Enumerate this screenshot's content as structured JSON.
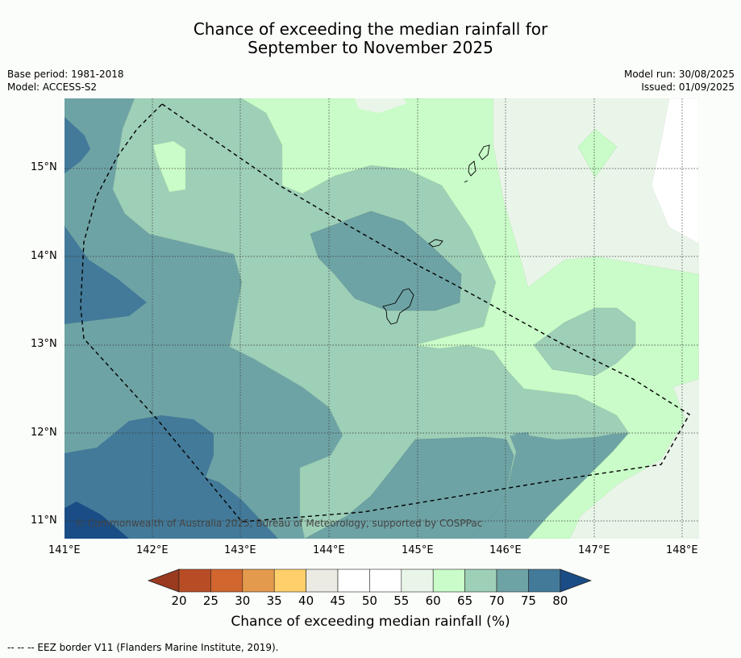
{
  "title_line1": "Chance of exceeding the median rainfall for",
  "title_line2": "September to November 2025",
  "info_left": [
    "Base period: 1981-2018",
    "Model: ACCESS-S2"
  ],
  "info_right": [
    "Model run: 30/08/2025",
    "Issued: 01/09/2025"
  ],
  "lat_ticks": [
    "15°N",
    "14°N",
    "13°N",
    "12°N",
    "11°N"
  ],
  "lon_ticks": [
    "141°E",
    "142°E",
    "143°E",
    "144°E",
    "145°E",
    "146°E",
    "147°E",
    "148°E"
  ],
  "credit": "© Commonwealth of Australia 2025, Bureau of Meteorology, supported by COSPPac",
  "colorbar": {
    "labels": [
      "20",
      "25",
      "30",
      "35",
      "40",
      "45",
      "50",
      "55",
      "60",
      "65",
      "70",
      "75",
      "80"
    ],
    "colors": [
      "#9a3a1f",
      "#b84d25",
      "#d2662f",
      "#e39a4c",
      "#ffcf6a",
      "#ebebe4",
      "#ffffff",
      "#ffffff",
      "#eaf5e9",
      "#c9fcc8",
      "#9ecfb7",
      "#6ea3a5",
      "#437a99",
      "#1a4d86"
    ],
    "title": "Chance of exceeding median rainfall (%)"
  },
  "footnote": "--  --  -- EEZ border V11 (Flanders Marine Institute, 2019)."
}
